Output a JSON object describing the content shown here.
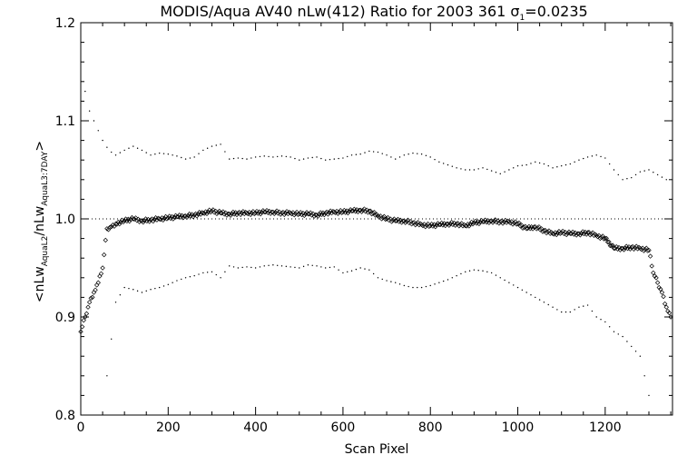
{
  "chart_data": {
    "type": "scatter",
    "title": {
      "main": "MODIS/Aqua AV40 nLw(412) Ratio for 2003 361 ",
      "sigma_symbol": "σ",
      "sigma_sub": "1",
      "sigma_rest": "=0.0235"
    },
    "xlabel": "Scan Pixel",
    "ylabel": {
      "open": "<nLw",
      "sub1": "AquaL2",
      "mid": "/nLw",
      "sub2": "AquaL3:7DAY",
      "close": ">"
    },
    "xlim": [
      0,
      1354
    ],
    "ylim": [
      0.8,
      1.2
    ],
    "x_ticks": [
      {
        "value": 0,
        "label": "0"
      },
      {
        "value": 200,
        "label": "200"
      },
      {
        "value": 400,
        "label": "400"
      },
      {
        "value": 600,
        "label": "600"
      },
      {
        "value": 800,
        "label": "800"
      },
      {
        "value": 1000,
        "label": "1000"
      },
      {
        "value": 1200,
        "label": "1200"
      }
    ],
    "y_ticks": [
      {
        "value": 0.8,
        "label": "0.8"
      },
      {
        "value": 0.9,
        "label": "0.9"
      },
      {
        "value": 1.0,
        "label": "1.0"
      },
      {
        "value": 1.1,
        "label": "1.1"
      },
      {
        "value": 1.2,
        "label": "1.2"
      }
    ],
    "reference_line": {
      "y": 1.0,
      "style": "dotted"
    },
    "grid": false,
    "series": [
      {
        "role": "mean ratio",
        "marker": "diamond",
        "x": [
          0,
          10,
          20,
          30,
          40,
          50,
          60,
          70,
          80,
          100,
          120,
          140,
          160,
          180,
          200,
          220,
          240,
          260,
          280,
          300,
          320,
          340,
          360,
          380,
          400,
          420,
          440,
          460,
          480,
          500,
          520,
          540,
          560,
          580,
          600,
          620,
          640,
          660,
          680,
          700,
          720,
          740,
          760,
          780,
          800,
          820,
          840,
          860,
          880,
          900,
          920,
          940,
          960,
          980,
          1000,
          1020,
          1040,
          1060,
          1080,
          1100,
          1120,
          1140,
          1160,
          1180,
          1200,
          1220,
          1240,
          1260,
          1280,
          1300,
          1310,
          1320,
          1330,
          1340,
          1350
        ],
        "y": [
          0.885,
          0.9,
          0.915,
          0.925,
          0.935,
          0.95,
          0.99,
          0.992,
          0.995,
          0.998,
          1.0,
          0.998,
          0.999,
          1.0,
          1.001,
          1.002,
          1.003,
          1.004,
          1.006,
          1.008,
          1.006,
          1.005,
          1.006,
          1.006,
          1.006,
          1.007,
          1.007,
          1.006,
          1.006,
          1.005,
          1.005,
          1.004,
          1.006,
          1.007,
          1.007,
          1.008,
          1.009,
          1.008,
          1.003,
          1.0,
          0.998,
          0.998,
          0.996,
          0.994,
          0.993,
          0.994,
          0.995,
          0.995,
          0.993,
          0.996,
          0.997,
          0.998,
          0.997,
          0.997,
          0.995,
          0.99,
          0.992,
          0.988,
          0.985,
          0.986,
          0.985,
          0.985,
          0.986,
          0.983,
          0.98,
          0.97,
          0.97,
          0.971,
          0.97,
          0.968,
          0.945,
          0.935,
          0.925,
          0.91,
          0.9
        ]
      },
      {
        "role": "upper bound",
        "marker": "dot",
        "x": [
          10,
          20,
          30,
          40,
          50,
          60,
          70,
          80,
          100,
          120,
          140,
          160,
          180,
          200,
          220,
          240,
          260,
          280,
          300,
          320,
          340,
          360,
          380,
          400,
          420,
          440,
          460,
          480,
          500,
          520,
          540,
          560,
          580,
          600,
          620,
          640,
          660,
          680,
          700,
          720,
          740,
          760,
          780,
          800,
          820,
          840,
          860,
          880,
          900,
          920,
          940,
          960,
          980,
          1000,
          1020,
          1040,
          1060,
          1080,
          1100,
          1120,
          1140,
          1160,
          1180,
          1200,
          1220,
          1240,
          1260,
          1280,
          1300,
          1320,
          1340
        ],
        "y": [
          1.13,
          1.11,
          1.1,
          1.09,
          1.08,
          1.073,
          1.068,
          1.065,
          1.07,
          1.074,
          1.07,
          1.065,
          1.067,
          1.066,
          1.064,
          1.061,
          1.063,
          1.07,
          1.074,
          1.076,
          1.061,
          1.062,
          1.061,
          1.063,
          1.064,
          1.063,
          1.064,
          1.063,
          1.06,
          1.062,
          1.063,
          1.06,
          1.061,
          1.062,
          1.065,
          1.066,
          1.069,
          1.068,
          1.065,
          1.061,
          1.065,
          1.067,
          1.066,
          1.063,
          1.058,
          1.055,
          1.052,
          1.05,
          1.05,
          1.052,
          1.049,
          1.046,
          1.05,
          1.054,
          1.055,
          1.058,
          1.056,
          1.052,
          1.054,
          1.056,
          1.06,
          1.063,
          1.065,
          1.062,
          1.05,
          1.04,
          1.042,
          1.048,
          1.05,
          1.045,
          1.04
        ]
      },
      {
        "role": "lower bound",
        "marker": "dot",
        "x": [
          60,
          80,
          100,
          120,
          140,
          160,
          180,
          200,
          220,
          240,
          260,
          280,
          300,
          320,
          340,
          360,
          380,
          400,
          420,
          440,
          460,
          480,
          500,
          520,
          540,
          560,
          580,
          600,
          620,
          640,
          660,
          680,
          700,
          720,
          740,
          760,
          780,
          800,
          820,
          840,
          860,
          880,
          900,
          920,
          940,
          960,
          980,
          1000,
          1020,
          1040,
          1060,
          1080,
          1100,
          1120,
          1140,
          1160,
          1180,
          1200,
          1220,
          1240,
          1260,
          1280,
          1300
        ],
        "y": [
          0.84,
          0.915,
          0.93,
          0.928,
          0.925,
          0.928,
          0.93,
          0.933,
          0.937,
          0.94,
          0.942,
          0.945,
          0.946,
          0.94,
          0.952,
          0.95,
          0.951,
          0.95,
          0.952,
          0.953,
          0.952,
          0.951,
          0.95,
          0.953,
          0.952,
          0.95,
          0.951,
          0.945,
          0.947,
          0.95,
          0.948,
          0.94,
          0.937,
          0.935,
          0.932,
          0.93,
          0.93,
          0.932,
          0.935,
          0.938,
          0.942,
          0.946,
          0.948,
          0.947,
          0.945,
          0.94,
          0.935,
          0.93,
          0.925,
          0.92,
          0.915,
          0.91,
          0.905,
          0.905,
          0.91,
          0.912,
          0.9,
          0.895,
          0.885,
          0.88,
          0.87,
          0.86,
          0.82
        ]
      }
    ]
  }
}
